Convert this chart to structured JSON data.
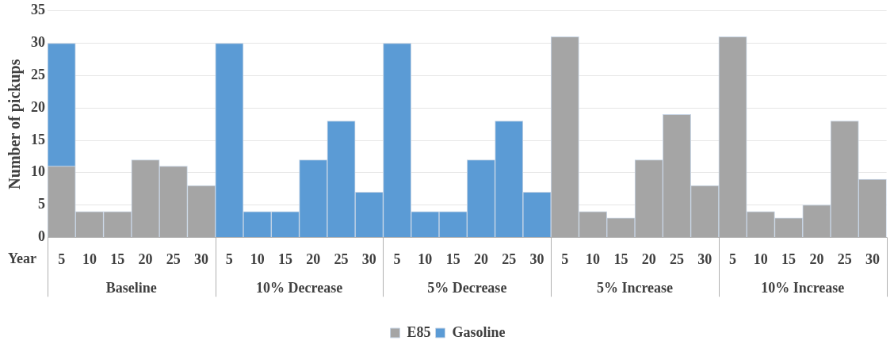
{
  "chart_data": {
    "type": "bar",
    "stacked": true,
    "ylabel": "Number of pickups",
    "xlabel": "Year",
    "categories": [
      "5",
      "10",
      "15",
      "20",
      "25",
      "30",
      "5",
      "10",
      "15",
      "20",
      "25",
      "30",
      "5",
      "10",
      "15",
      "20",
      "25",
      "30",
      "5",
      "10",
      "15",
      "20",
      "25",
      "30",
      "5",
      "10",
      "15",
      "20",
      "25",
      "30"
    ],
    "series": [
      {
        "name": "E85",
        "color": "#a5a5a5",
        "values": [
          11,
          4,
          4,
          12,
          11,
          8,
          null,
          null,
          null,
          null,
          null,
          null,
          null,
          null,
          null,
          null,
          null,
          null,
          31,
          4,
          3,
          12,
          19,
          8,
          31,
          4,
          3,
          5,
          18,
          9
        ]
      },
      {
        "name": "Gasoline",
        "color": "#5b9bd5",
        "values": [
          19,
          null,
          null,
          null,
          null,
          null,
          30,
          4,
          4,
          12,
          18,
          7,
          30,
          4,
          4,
          12,
          18,
          7,
          null,
          null,
          null,
          null,
          null,
          null,
          null,
          null,
          null,
          null,
          null,
          null
        ]
      }
    ],
    "annotations": [
      "Baseline",
      "10% Decrease",
      "5% Decrease",
      "5% Increase",
      "10% Increase"
    ],
    "ylim": [
      0,
      35
    ],
    "yticks": [
      0,
      5,
      10,
      15,
      20,
      25,
      30,
      35
    ],
    "grid": "y",
    "legend": "bottom"
  }
}
